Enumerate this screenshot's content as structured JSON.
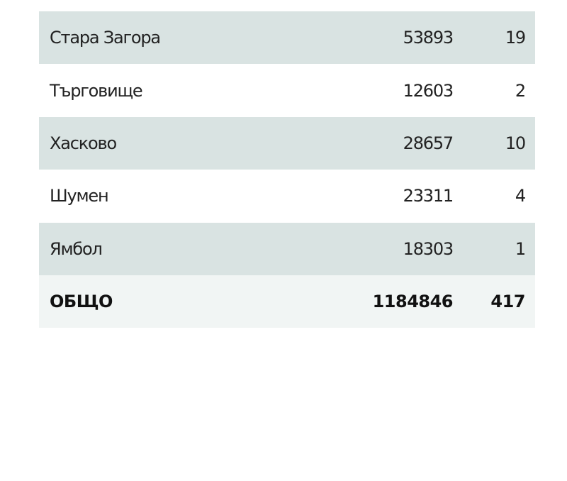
{
  "table": {
    "rows": [
      {
        "name": "Стара Загора",
        "value": "53893",
        "count": "19"
      },
      {
        "name": "Търговище",
        "value": "12603",
        "count": "2"
      },
      {
        "name": "Хасково",
        "value": "28657",
        "count": "10"
      },
      {
        "name": "Шумен",
        "value": "23311",
        "count": "4"
      },
      {
        "name": "Ямбол",
        "value": "18303",
        "count": "1"
      }
    ],
    "total": {
      "name": "ОБЩО",
      "value": "1184846",
      "count": "417"
    }
  },
  "colors": {
    "stripe": "#d9e3e2",
    "total_bg": "#f1f5f4"
  }
}
